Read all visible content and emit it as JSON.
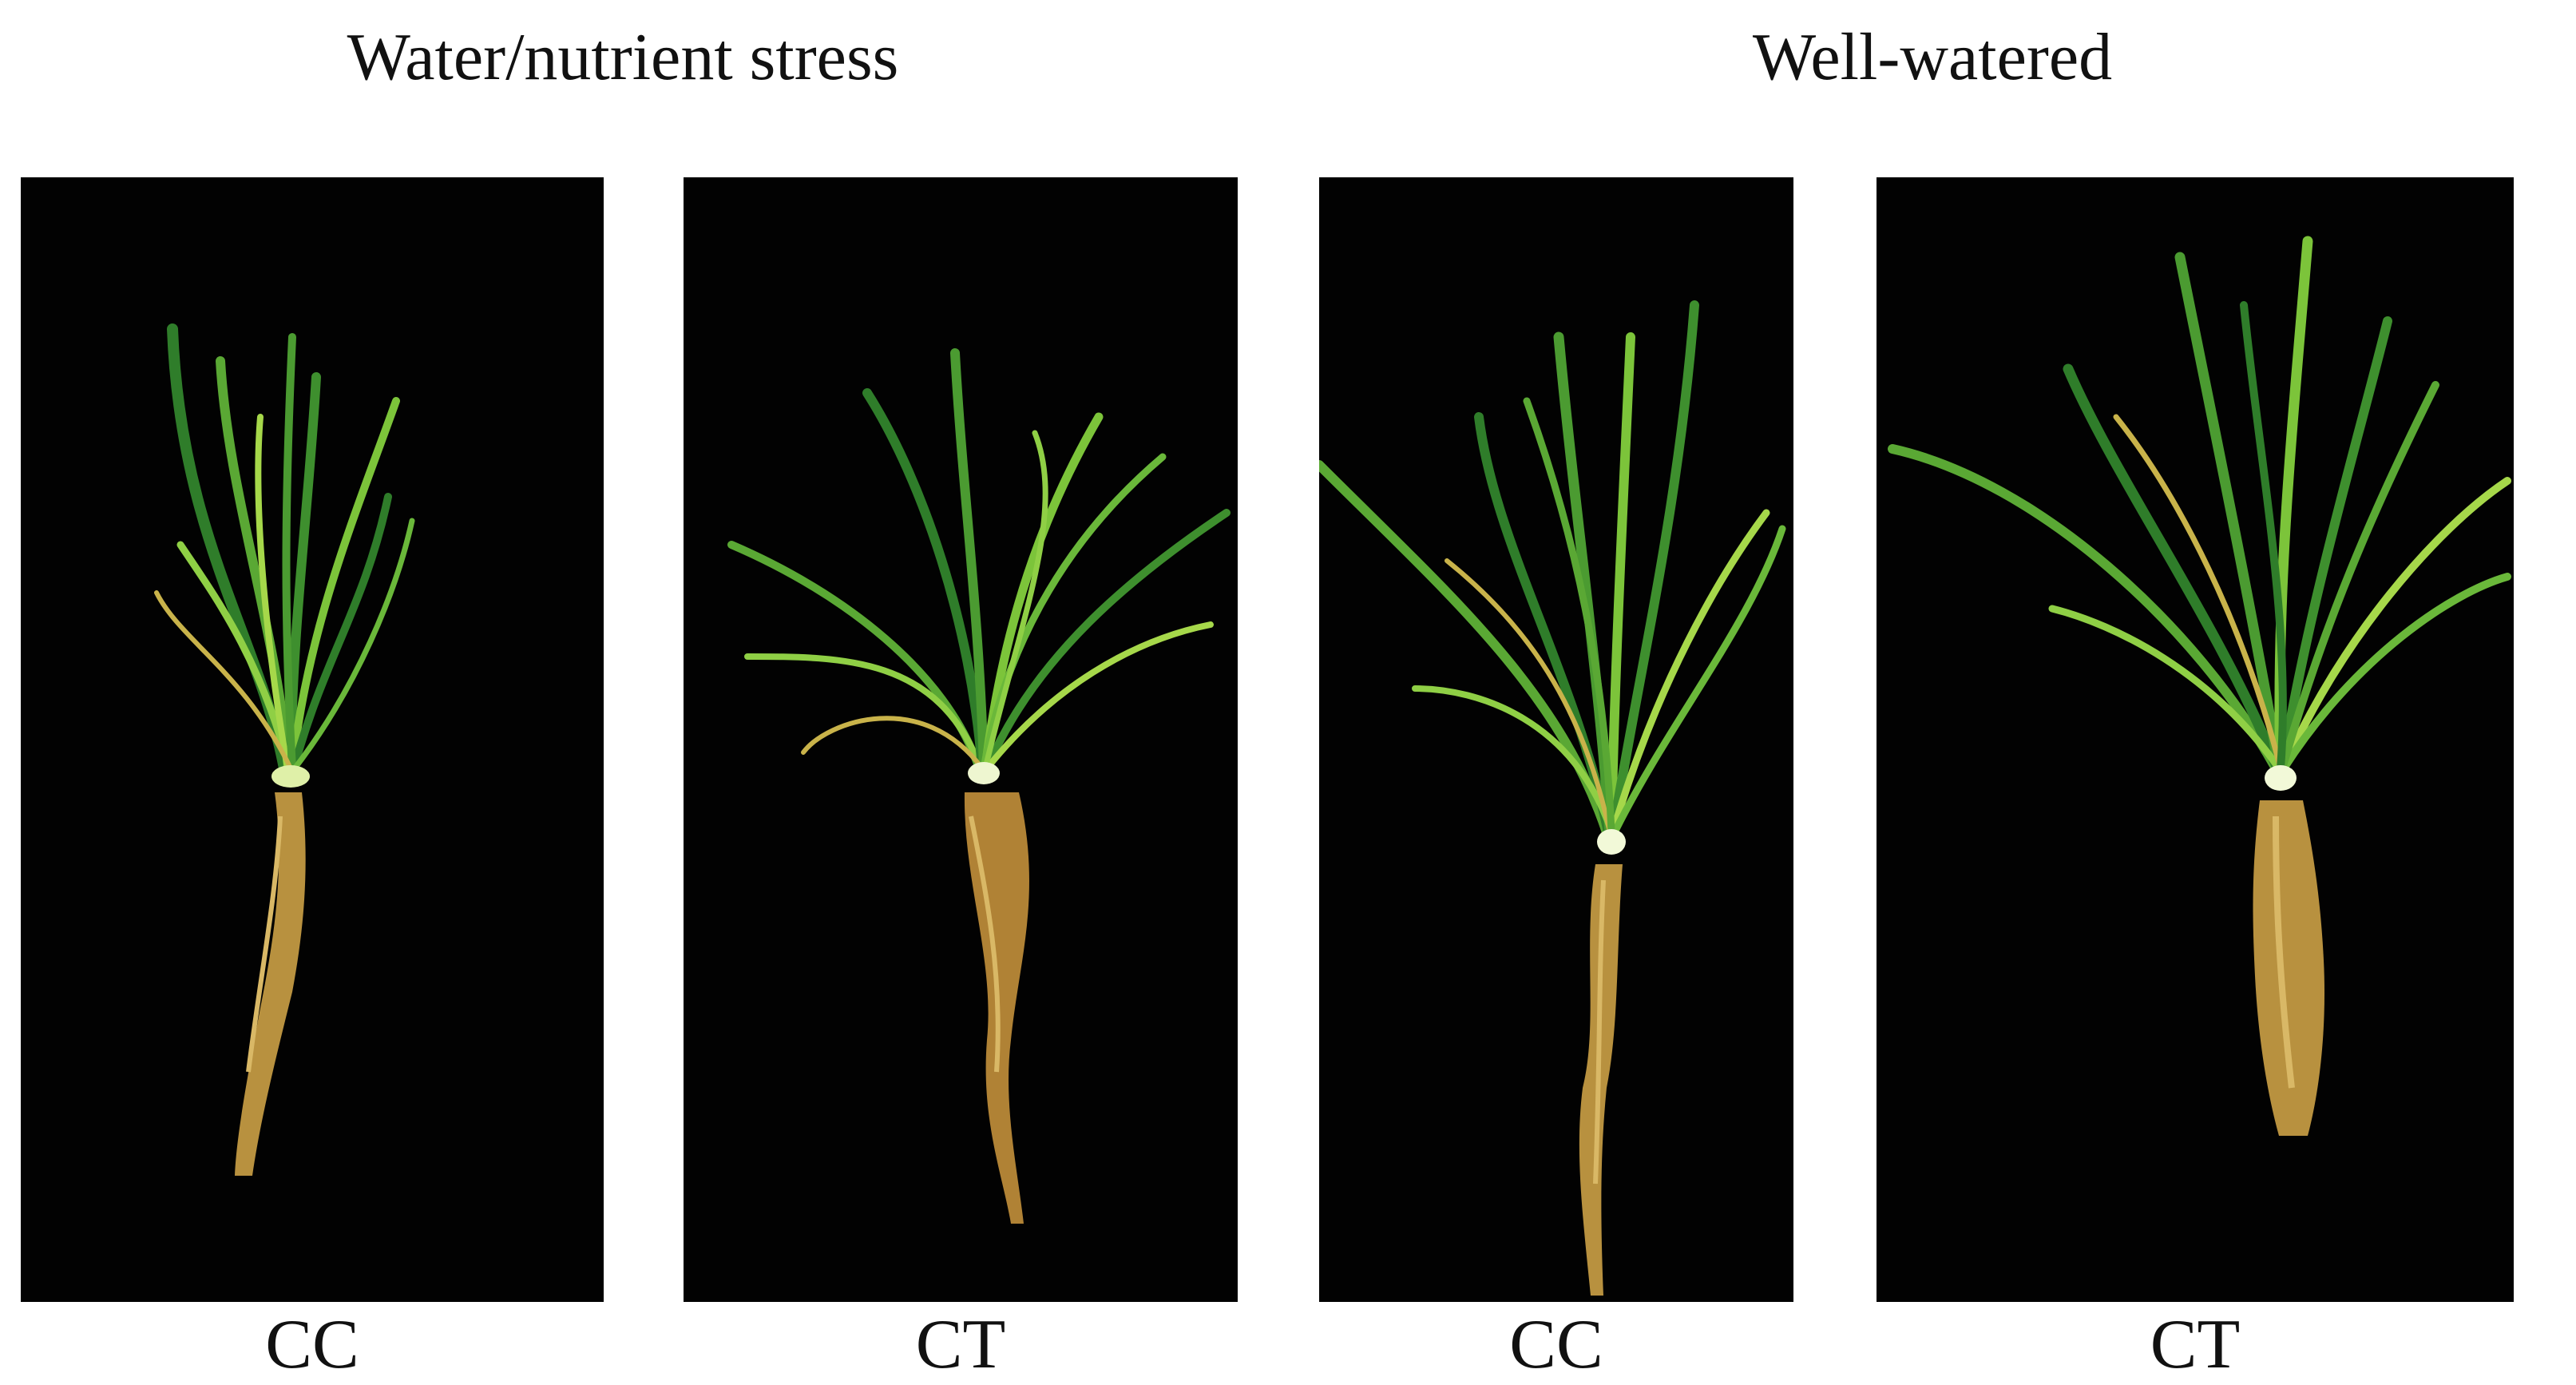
{
  "groups": [
    {
      "title": "Water/nutrient stress"
    },
    {
      "title": "Well-watered"
    }
  ],
  "panels": [
    {
      "label": "CC"
    },
    {
      "label": "CT"
    },
    {
      "label": "CC"
    },
    {
      "label": "CT"
    }
  ],
  "colors": {
    "background": "#020202",
    "leaf_dark": "#2f7d2a",
    "leaf_light": "#7cc43a",
    "stem": "#dff0a8",
    "root": "#b8913f"
  }
}
